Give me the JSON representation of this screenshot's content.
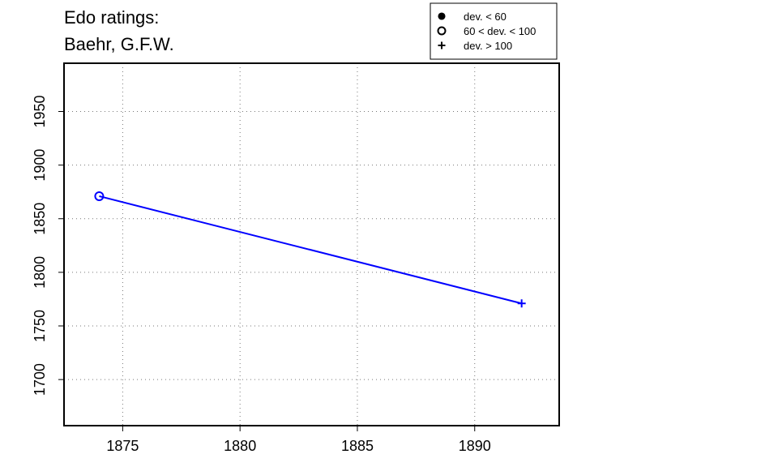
{
  "chart_data": {
    "type": "line",
    "title": [
      "Edo ratings:",
      "Baehr, G.F.W."
    ],
    "xlabel": "",
    "ylabel": "",
    "xlim": [
      1872.5,
      1893.6
    ],
    "ylim": [
      1657,
      1995
    ],
    "x_ticks": [
      1875,
      1880,
      1885,
      1890
    ],
    "y_ticks": [
      1700,
      1750,
      1800,
      1850,
      1900,
      1950
    ],
    "grid": true,
    "series_color": "#0000ff",
    "series": [
      {
        "points": [
          {
            "x": 1874,
            "y": 1871,
            "marker": "open-circle"
          },
          {
            "x": 1892,
            "y": 1771,
            "marker": "plus"
          }
        ]
      }
    ],
    "legend": {
      "position": "top-right",
      "entries": [
        {
          "label": "dev. < 60",
          "marker": "filled-circle"
        },
        {
          "label": "60 < dev. < 100",
          "marker": "open-circle"
        },
        {
          "label": "dev. > 100",
          "marker": "plus"
        }
      ]
    }
  }
}
